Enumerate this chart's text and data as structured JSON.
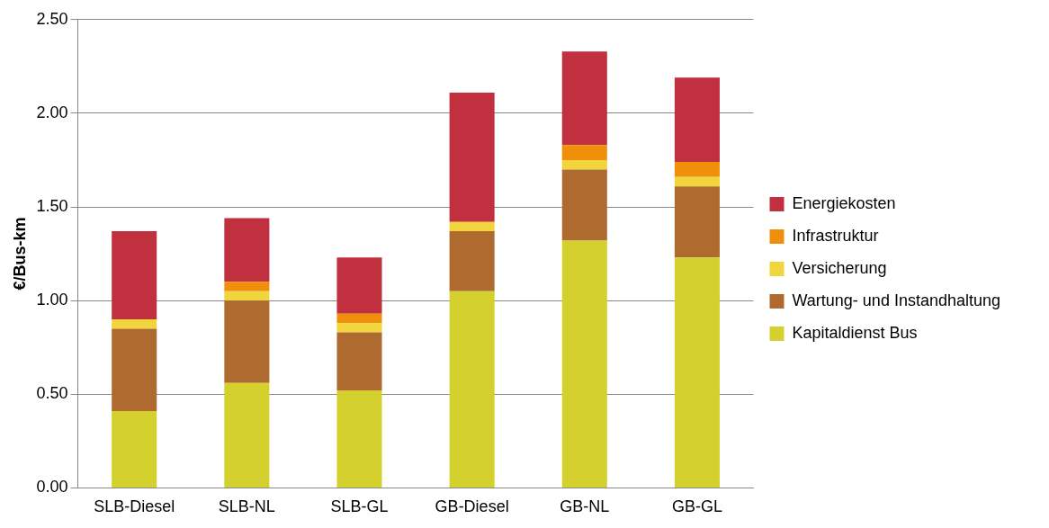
{
  "chart_data": {
    "type": "bar",
    "stacked": true,
    "ylabel": "€/Bus-km",
    "categories": [
      "SLB-Diesel",
      "SLB-NL",
      "SLB-GL",
      "GB-Diesel",
      "GB-NL",
      "GB-GL"
    ],
    "series": [
      {
        "name": "Kapitaldienst Bus",
        "color": "#d4d12e",
        "values": [
          0.41,
          0.56,
          0.52,
          1.05,
          1.32,
          1.23
        ]
      },
      {
        "name": "Wartung- und Instandhaltung",
        "color": "#ae6a2f",
        "values": [
          0.44,
          0.44,
          0.31,
          0.32,
          0.38,
          0.38
        ]
      },
      {
        "name": "Versicherung",
        "color": "#f2d43c",
        "values": [
          0.05,
          0.05,
          0.05,
          0.05,
          0.05,
          0.05
        ]
      },
      {
        "name": "Infrastruktur",
        "color": "#ef8f0a",
        "values": [
          0,
          0.05,
          0.05,
          0,
          0.08,
          0.08
        ]
      },
      {
        "name": "Energiekosten",
        "color": "#c0303f",
        "values": [
          0.47,
          0.34,
          0.3,
          0.69,
          0.5,
          0.45
        ]
      }
    ],
    "ylim": [
      0,
      2.5
    ],
    "yticks": [
      {
        "value": 0,
        "label": "0.00"
      },
      {
        "value": 0.5,
        "label": "0.50"
      },
      {
        "value": 1,
        "label": "1.00"
      },
      {
        "value": 1.5,
        "label": "1.50"
      },
      {
        "value": 2,
        "label": "2.00"
      },
      {
        "value": 2.5,
        "label": "2.50"
      }
    ],
    "grid": "y",
    "legend": "right"
  }
}
